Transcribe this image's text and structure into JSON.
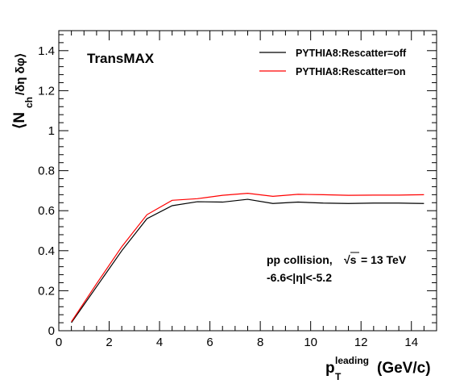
{
  "chart_data": {
    "type": "line",
    "label": "TransMAX",
    "annotation": {
      "line1_prefix": "pp collision,",
      "sqrt": "√s",
      "line1_suffix": "= 13 TeV",
      "line2": "-6.6<|η|<-5.2"
    },
    "xlabel": {
      "base": "p",
      "sub": "T",
      "sup": "leading",
      "unit": "(GeV/c)"
    },
    "ylabel": {
      "open": "⟨N",
      "sub": "ch",
      "rest": "/δη  δφ⟩"
    },
    "xlim": [
      0,
      15
    ],
    "ylim": [
      0,
      1.5
    ],
    "xticks": [
      0,
      2,
      4,
      6,
      8,
      10,
      12,
      14
    ],
    "xtick_labels": [
      "0",
      "2",
      "4",
      "6",
      "8",
      "10",
      "12",
      "14"
    ],
    "yticks": [
      0,
      0.2,
      0.4,
      0.6,
      0.8,
      1,
      1.2,
      1.4
    ],
    "ytick_labels": [
      "0",
      "0.2",
      "0.4",
      "0.6",
      "0.8",
      "1",
      "1.2",
      "1.4"
    ],
    "grid": false,
    "legend_position": "top-right",
    "x": [
      0.5,
      1.5,
      2.5,
      3.5,
      4.5,
      5.5,
      6.5,
      7.5,
      8.5,
      9.5,
      10.5,
      11.5,
      12.5,
      13.5,
      14.5
    ],
    "series": [
      {
        "name": "PYTHIA8:Rescatter=off",
        "color": "#000000",
        "values": [
          0.04,
          0.22,
          0.4,
          0.56,
          0.625,
          0.645,
          0.643,
          0.657,
          0.636,
          0.643,
          0.638,
          0.636,
          0.638,
          0.638,
          0.636
        ]
      },
      {
        "name": "PYTHIA8:Rescatter=on",
        "color": "#ff0000",
        "values": [
          0.045,
          0.235,
          0.42,
          0.58,
          0.652,
          0.66,
          0.677,
          0.687,
          0.672,
          0.682,
          0.68,
          0.677,
          0.678,
          0.678,
          0.68
        ]
      }
    ]
  }
}
